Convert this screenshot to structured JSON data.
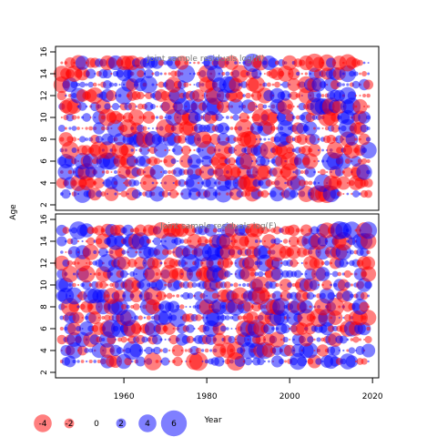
{
  "chart_data": {
    "type": "scatter",
    "ylabel": "Age",
    "xlabel": "Year",
    "colors": {
      "positive": "#0000ff",
      "negative": "#ff0000"
    },
    "legend": {
      "placement": "bottom-left",
      "entries": [
        {
          "label": "-4",
          "value": -4
        },
        {
          "label": "-2",
          "value": -2
        },
        {
          "label": "0",
          "value": 0
        },
        {
          "label": "2",
          "value": 2
        },
        {
          "label": "4",
          "value": 4
        },
        {
          "label": "6",
          "value": 6
        }
      ]
    },
    "xlim": [
      1943.5,
      2021.5
    ],
    "x_ticks": [
      1960,
      1980,
      2000,
      2020
    ],
    "x_tick_labels": [
      "1960",
      "1980",
      "2000",
      "2020"
    ],
    "y_ticks": [
      2,
      4,
      6,
      8,
      10,
      12,
      14,
      16
    ],
    "y_tick_labels": [
      "2",
      "4",
      "6",
      "8",
      "10",
      "12",
      "14",
      "16"
    ],
    "years": [
      1945,
      2019
    ],
    "ages": [
      3,
      15
    ],
    "panels": [
      {
        "title": "Joint sample residuals log(N)",
        "ylim": [
          1.5,
          16.5
        ],
        "seed": 7
      },
      {
        "title": "Joint sample residuals log(F)",
        "ylim": [
          1.5,
          16.5
        ],
        "seed": 23
      }
    ]
  }
}
